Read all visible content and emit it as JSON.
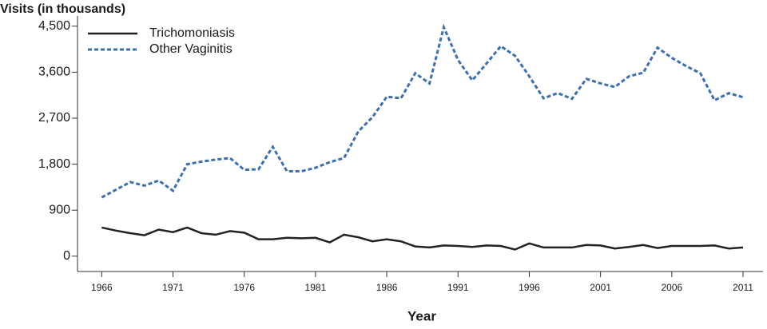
{
  "chart_data": {
    "type": "line",
    "y_label": "Visits (in thousands)",
    "x_label": "Year",
    "x": [
      1966,
      1967,
      1968,
      1969,
      1970,
      1971,
      1972,
      1973,
      1974,
      1975,
      1976,
      1977,
      1978,
      1979,
      1980,
      1981,
      1982,
      1983,
      1984,
      1985,
      1986,
      1987,
      1988,
      1989,
      1990,
      1991,
      1992,
      1993,
      1994,
      1995,
      1996,
      1997,
      1998,
      1999,
      2000,
      2001,
      2002,
      2003,
      2004,
      2005,
      2006,
      2007,
      2008,
      2009,
      2010,
      2011
    ],
    "series": [
      {
        "name": "Trichomoniasis",
        "color": "#222222",
        "dash": false,
        "values": [
          560,
          500,
          450,
          410,
          520,
          470,
          560,
          450,
          420,
          490,
          460,
          330,
          330,
          360,
          350,
          360,
          270,
          420,
          370,
          290,
          330,
          290,
          190,
          170,
          210,
          200,
          180,
          210,
          200,
          130,
          250,
          170,
          170,
          170,
          220,
          210,
          150,
          180,
          220,
          160,
          200,
          200,
          200,
          210,
          150,
          170
        ]
      },
      {
        "name": "Other Vaginitis",
        "color": "#3c6fb0",
        "dash": true,
        "values": [
          1150,
          1300,
          1450,
          1380,
          1480,
          1280,
          1800,
          1850,
          1890,
          1920,
          1690,
          1700,
          2140,
          1660,
          1660,
          1730,
          1840,
          1920,
          2440,
          2720,
          3120,
          3090,
          3580,
          3380,
          4480,
          3840,
          3440,
          3770,
          4110,
          3920,
          3520,
          3090,
          3190,
          3080,
          3470,
          3380,
          3310,
          3520,
          3590,
          4080,
          3880,
          3720,
          3580,
          3050,
          3190,
          3110
        ]
      }
    ],
    "xlim": [
      1964.3,
      2012.4
    ],
    "ylim": [
      -300,
      4700
    ],
    "xticks": [
      1966,
      1971,
      1976,
      1981,
      1986,
      1991,
      1996,
      2001,
      2006,
      2011
    ],
    "yticks": [
      0,
      900,
      {
        "value": 1800,
        "label": "1,800"
      },
      {
        "value": 2700,
        "label": "2,700"
      },
      {
        "value": 3600,
        "label": "3,600"
      },
      {
        "value": 4500,
        "label": "4,500"
      }
    ],
    "legend": "top-left"
  }
}
